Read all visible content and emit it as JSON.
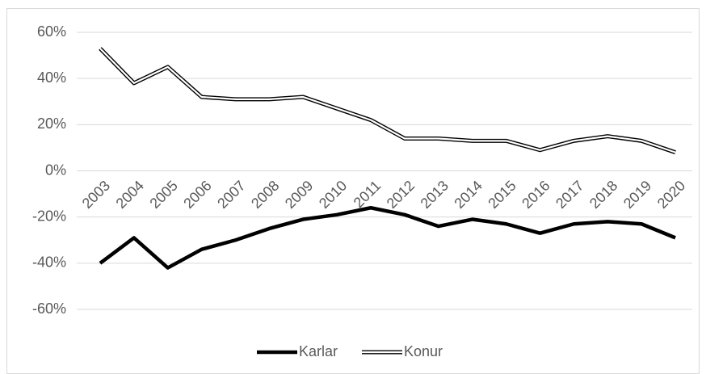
{
  "chart_data": {
    "type": "line",
    "categories": [
      "2003",
      "2004",
      "2005",
      "2006",
      "2007",
      "2008",
      "2009",
      "2010",
      "2011",
      "2012",
      "2013",
      "2014",
      "2015",
      "2016",
      "2017",
      "2018",
      "2019",
      "2020"
    ],
    "series": [
      {
        "name": "Karlar",
        "color": "#000000",
        "line_style": "solid",
        "values": [
          -40,
          -29,
          -42,
          -34,
          -30,
          -25,
          -21,
          -19,
          -16,
          -19,
          -24,
          -21,
          -23,
          -27,
          -23,
          -22,
          -23,
          -29
        ]
      },
      {
        "name": "Konur",
        "color": "#ffffff",
        "line_style": "double",
        "values": [
          53,
          38,
          45,
          32,
          31,
          31,
          32,
          27,
          22,
          14,
          14,
          13,
          13,
          9,
          13,
          15,
          13,
          8
        ]
      }
    ],
    "ylim": [
      -60,
      60
    ],
    "yticks": [
      {
        "value": -60,
        "label": "-60%"
      },
      {
        "value": -40,
        "label": "-40%"
      },
      {
        "value": -20,
        "label": "-20%"
      },
      {
        "value": 0,
        "label": "0%"
      },
      {
        "value": 20,
        "label": "20%"
      },
      {
        "value": 40,
        "label": "40%"
      },
      {
        "value": 60,
        "label": "60%"
      }
    ],
    "grid": true,
    "legend": "bottom"
  }
}
